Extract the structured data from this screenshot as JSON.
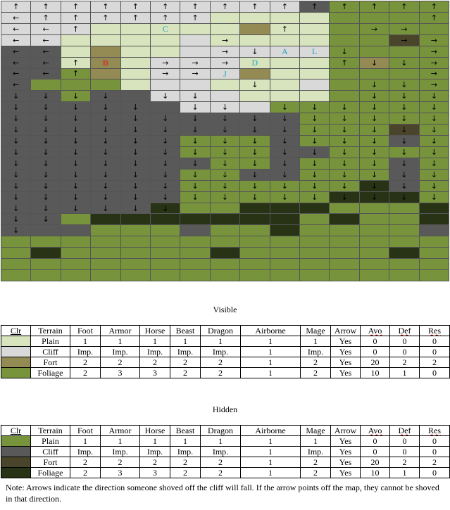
{
  "colors": {
    "P": "#d7e4bd",
    "C": "#d9d9d9",
    "F": "#948a54",
    "G": "#77933c",
    "p": "#77933c",
    "c": "#595959",
    "f": "#4a452a",
    "g": "#283214",
    "label_red": "#e81010",
    "label_cyan": "#1fa3c4"
  },
  "map": {
    "terrain": [
      "CCCCCCCCCCcpppp",
      "CCCCCCCPPPPpppp",
      "CCCPPPPPFPPpppp",
      "CCPPPPCPPPPppfp",
      "ccPFPPCCCCCpppp",
      "ccPFPCCCPPPpFpp",
      "ccpFPCCCFPPpppp",
      "cGGGPCCPPPCpppp",
      "ccpccCCCPPPpppp",
      "ccccccCCCpppppp",
      "ccccccccccppppp",
      "ccccccccccpppfp",
      "ccccccpppcpppcp",
      "ccccccpppccpppp",
      "cccccccppcpppcp",
      "ccccccppccpppcp",
      "ccccccppppppgcp",
      "ccccccpppppgggp",
      "cccccgppgggpppg",
      "ccpgggggggpgppg",
      "cccpppcppgppppc",
      "ppppppppppppppp",
      "pgpppppgpppppgp",
      "ppppppppppppppp",
      "ppppppppppppppp"
    ],
    "arrows": [
      "^^^^^^^^^^^^^^^",
      "<^^^^^^.......^",
      "<<^......^..>>.",
      "<<.....>.....>>",
      "<<.....>vvvv..>",
      "<<^..>>>...^vv>",
      "<<^..>>.......>",
      "<.......v...vv>",
      "vvvv.vv.....vvv",
      "vvvvv.vv.vvvvvv",
      "vvvvvvvvvvvvvvv",
      "vvvvvvvvvvvvvvv",
      "vvvvvvvvvvvvvvv",
      "vvvvvvvvvvvvvvv",
      "vvvvvvvvvvvvvvv",
      "vvvvvvvvvvvvvvv",
      "vvvvvvvvvvvvvvv",
      "vvvvvvvvvvvvvvv",
      "vvvvvv.........",
      "vv.............",
      "v..............",
      "...............",
      "...............",
      "...............",
      "..............."
    ],
    "labels": [
      {
        "row": 2,
        "col": 5,
        "text": "C",
        "color": "cyan"
      },
      {
        "row": 5,
        "col": 3,
        "text": "B",
        "color": "red"
      },
      {
        "row": 4,
        "col": 9,
        "text": "A",
        "color": "cyan"
      },
      {
        "row": 4,
        "col": 10,
        "text": "L",
        "color": "cyan"
      },
      {
        "row": 5,
        "col": 8,
        "text": "D",
        "color": "cyan"
      },
      {
        "row": 6,
        "col": 7,
        "text": "J",
        "color": "cyan"
      }
    ]
  },
  "visible": {
    "title": "Visible",
    "headers": [
      "Clr",
      "Terrain",
      "Foot",
      "Armor",
      "Horse",
      "Beast",
      "Dragon",
      "Airborne",
      "Mage",
      "Arrow",
      "Avo",
      "Def",
      "Res"
    ],
    "rows": [
      {
        "swatch": "P",
        "cells": [
          "Plain",
          "1",
          "1",
          "1",
          "1",
          "1",
          "1",
          "1",
          "Yes",
          "0",
          "0",
          "0"
        ]
      },
      {
        "swatch": "C",
        "cells": [
          "Cliff",
          "Imp.",
          "Imp.",
          "Imp.",
          "Imp.",
          "Imp.",
          "1",
          "Imp.",
          "Yes",
          "0",
          "0",
          "0"
        ]
      },
      {
        "swatch": "F",
        "cells": [
          "Fort",
          "2",
          "2",
          "2",
          "2",
          "2",
          "1",
          "2",
          "Yes",
          "20",
          "2",
          "2"
        ]
      },
      {
        "swatch": "G",
        "cells": [
          "Foliage",
          "2",
          "3",
          "3",
          "2",
          "2",
          "1",
          "2",
          "Yes",
          "10",
          "1",
          "0"
        ]
      }
    ]
  },
  "hidden": {
    "title": "Hidden",
    "headers": [
      "Clr",
      "Terrain",
      "Foot",
      "Armor",
      "Horse",
      "Beast",
      "Dragon",
      "Airborne",
      "Mage",
      "Arrow",
      "Avo",
      "Def",
      "Res"
    ],
    "rows": [
      {
        "swatch": "p",
        "cells": [
          "Plain",
          "1",
          "1",
          "1",
          "1",
          "1",
          "1",
          "1",
          "Yes",
          "0",
          "0",
          "0"
        ]
      },
      {
        "swatch": "c",
        "cells": [
          "Cliff",
          "Imp.",
          "Imp.",
          "Imp.",
          "Imp.",
          "Imp.",
          "1",
          "Imp.",
          "Yes",
          "0",
          "0",
          "0"
        ]
      },
      {
        "swatch": "f",
        "cells": [
          "Fort",
          "2",
          "2",
          "2",
          "2",
          "2",
          "1",
          "2",
          "Yes",
          "20",
          "2",
          "2"
        ]
      },
      {
        "swatch": "g",
        "cells": [
          "Foliage",
          "2",
          "3",
          "3",
          "2",
          "2",
          "1",
          "2",
          "Yes",
          "10",
          "1",
          "0"
        ]
      }
    ]
  },
  "note": "Note: Arrows indicate the direction someone shoved off the cliff will fall.  If the arrow points off the map, they cannot be shoved in that direction."
}
